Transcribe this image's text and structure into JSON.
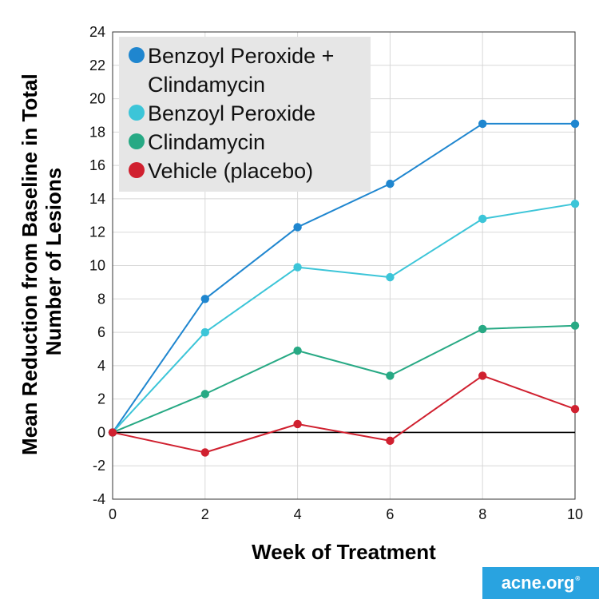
{
  "chart_data": {
    "type": "line",
    "title": "",
    "xlabel": "Week of Treatment",
    "ylabel_lines": [
      "Mean Reduction from Baseline in Total",
      "Number of Lesions"
    ],
    "x": [
      0,
      2,
      4,
      6,
      8,
      10
    ],
    "xticks": [
      "0",
      "2",
      "4",
      "6",
      "8",
      "10"
    ],
    "yticks": [
      "-4",
      "-2",
      "0",
      "2",
      "4",
      "6",
      "8",
      "10",
      "12",
      "14",
      "16",
      "18",
      "20",
      "22",
      "24"
    ],
    "xlim": [
      0,
      10
    ],
    "ylim": [
      -4,
      24
    ],
    "grid": true,
    "legend_position": "top-left",
    "series": [
      {
        "name_lines": [
          "Benzoyl Peroxide +",
          "Clindamycin"
        ],
        "color": "#1f86cf",
        "values": [
          0,
          8.0,
          12.3,
          14.9,
          18.5,
          18.5
        ]
      },
      {
        "name_lines": [
          "Benzoyl Peroxide"
        ],
        "color": "#3cc5d8",
        "values": [
          0,
          6.0,
          9.9,
          9.3,
          12.8,
          13.7
        ]
      },
      {
        "name_lines": [
          "Clindamycin"
        ],
        "color": "#27a984",
        "values": [
          0,
          2.3,
          4.9,
          3.4,
          6.2,
          6.4
        ]
      },
      {
        "name_lines": [
          "Vehicle (placebo)"
        ],
        "color": "#d0202f",
        "values": [
          0,
          -1.2,
          0.5,
          -0.5,
          3.4,
          1.4
        ]
      }
    ]
  },
  "brand": {
    "text": "acne.org",
    "mark": "®"
  }
}
